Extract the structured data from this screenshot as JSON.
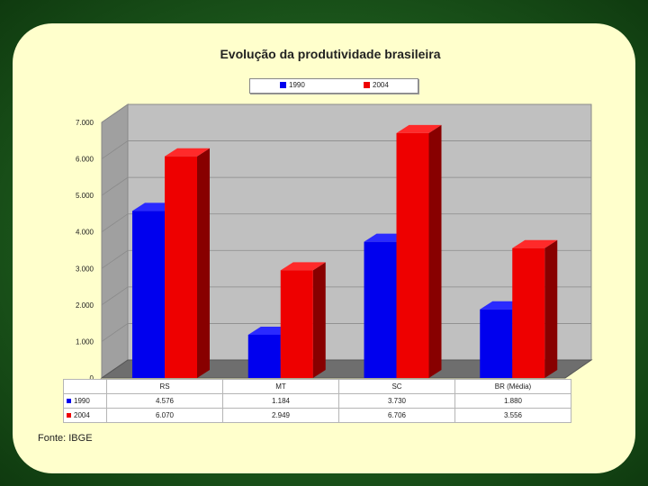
{
  "source_label": "Fonte: IBGE",
  "colors": {
    "series_1990": "#0000ee",
    "series_2004": "#ee0000",
    "plot_bg": "#c0c0c0"
  },
  "chart_data": {
    "type": "bar",
    "title": "Evolução da produtividade brasileira",
    "categories": [
      "RS",
      "MT",
      "SC",
      "BR (Média)"
    ],
    "series": [
      {
        "name": "1990",
        "values": [
          4.576,
          1.184,
          3.73,
          1.88
        ],
        "labels": [
          "4.576",
          "1.184",
          "3.730",
          "1.880"
        ]
      },
      {
        "name": "2004",
        "values": [
          6.07,
          2.949,
          6.706,
          3.556
        ],
        "labels": [
          "6.070",
          "2.949",
          "6.706",
          "3.556"
        ]
      }
    ],
    "yticks": [
      "0",
      "1.000",
      "2.000",
      "3.000",
      "4.000",
      "5.000",
      "6.000",
      "7.000"
    ],
    "ylim": [
      0,
      7000
    ],
    "grid": true,
    "legend_position": "top",
    "data_table": true
  }
}
